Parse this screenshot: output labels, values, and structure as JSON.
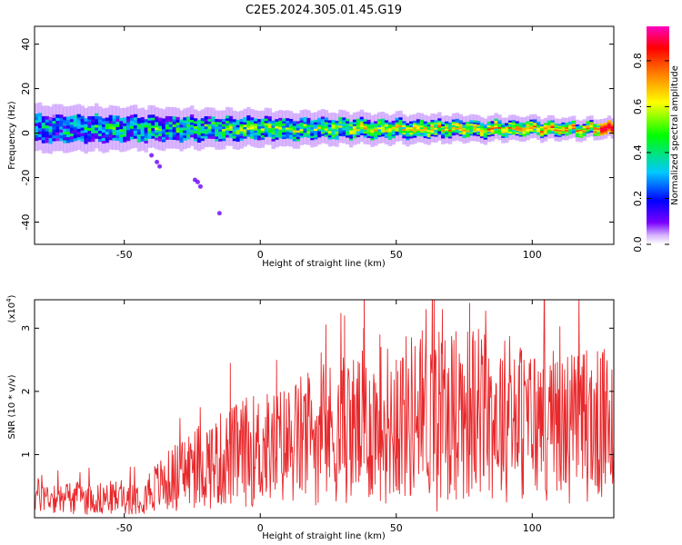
{
  "title": "C2E5.2024.305.01.45.G19",
  "chart_data": [
    {
      "type": "heatmap",
      "xlabel": "Height of straight line (km)",
      "ylabel": "Frequency (Hz)",
      "xlim": [
        -83,
        130
      ],
      "ylim": [
        -50,
        48
      ],
      "xticks": [
        -50,
        0,
        50,
        100
      ],
      "yticks": [
        -40,
        -20,
        0,
        20,
        40
      ],
      "colorbar": {
        "label": "Normalized spectral amplitude",
        "range": [
          0.0,
          0.95
        ],
        "ticks": [
          0.0,
          0.2,
          0.4,
          0.6,
          0.8
        ],
        "tick_labels": [
          "0.0",
          "0.2",
          "0.4",
          "0.6",
          "0.8"
        ],
        "colormap": [
          "#ffffff",
          "#7a00ff",
          "#0000ff",
          "#00c8ff",
          "#00ff00",
          "#ffff00",
          "#ff8000",
          "#ff0000",
          "#ff00c0"
        ]
      },
      "band": {
        "center_freq_hz": 2,
        "half_width_hz_left": 6,
        "half_width_hz_right": 2.5,
        "dominant_amplitude": 0.95
      },
      "outliers": [
        {
          "x": -40,
          "y": -10
        },
        {
          "x": -38,
          "y": -13
        },
        {
          "x": -37,
          "y": -15
        },
        {
          "x": -24,
          "y": -21
        },
        {
          "x": -22,
          "y": -24
        },
        {
          "x": -23,
          "y": -22
        },
        {
          "x": -15,
          "y": -36
        }
      ],
      "grid": false
    },
    {
      "type": "line",
      "xlabel": "Height of straight line (km)",
      "ylabel": "SNR (10 * v/v)",
      "y_multiplier_label": "(x10",
      "y_multiplier_exp": "4",
      "y_multiplier_close": ")",
      "xlim": [
        -83,
        130
      ],
      "ylim": [
        0,
        3.45
      ],
      "xticks": [
        -50,
        0,
        50,
        100
      ],
      "yticks": [
        1,
        2,
        3
      ],
      "color": "#e8282b",
      "profile_knots": [
        [
          -83,
          0.35
        ],
        [
          -60,
          0.3
        ],
        [
          -45,
          0.35
        ],
        [
          -35,
          0.55
        ],
        [
          -25,
          0.8
        ],
        [
          -15,
          0.9
        ],
        [
          -5,
          1.05
        ],
        [
          5,
          1.1
        ],
        [
          20,
          1.3
        ],
        [
          40,
          1.45
        ],
        [
          55,
          1.6
        ],
        [
          65,
          1.7
        ],
        [
          80,
          1.65
        ],
        [
          100,
          1.5
        ],
        [
          115,
          1.45
        ],
        [
          130,
          1.45
        ]
      ],
      "spikes": [
        {
          "x": -11,
          "y": 2.45
        },
        {
          "x": 6,
          "y": 2.5
        },
        {
          "x": 31,
          "y": 3.2
        },
        {
          "x": 38,
          "y": 3.0
        },
        {
          "x": 44,
          "y": 2.9
        },
        {
          "x": 50,
          "y": 2.5
        },
        {
          "x": 61,
          "y": 3.3
        },
        {
          "x": 64,
          "y": 3.45
        },
        {
          "x": 67,
          "y": 3.3
        },
        {
          "x": 72,
          "y": 2.95
        },
        {
          "x": 77,
          "y": 3.4
        },
        {
          "x": 96,
          "y": 2.6
        },
        {
          "x": 104,
          "y": 2.35
        },
        {
          "x": 120,
          "y": 2.65
        },
        {
          "x": 127,
          "y": 2.0
        }
      ],
      "min_dip": {
        "x": 65,
        "y": 0.1
      },
      "grid": false
    }
  ]
}
